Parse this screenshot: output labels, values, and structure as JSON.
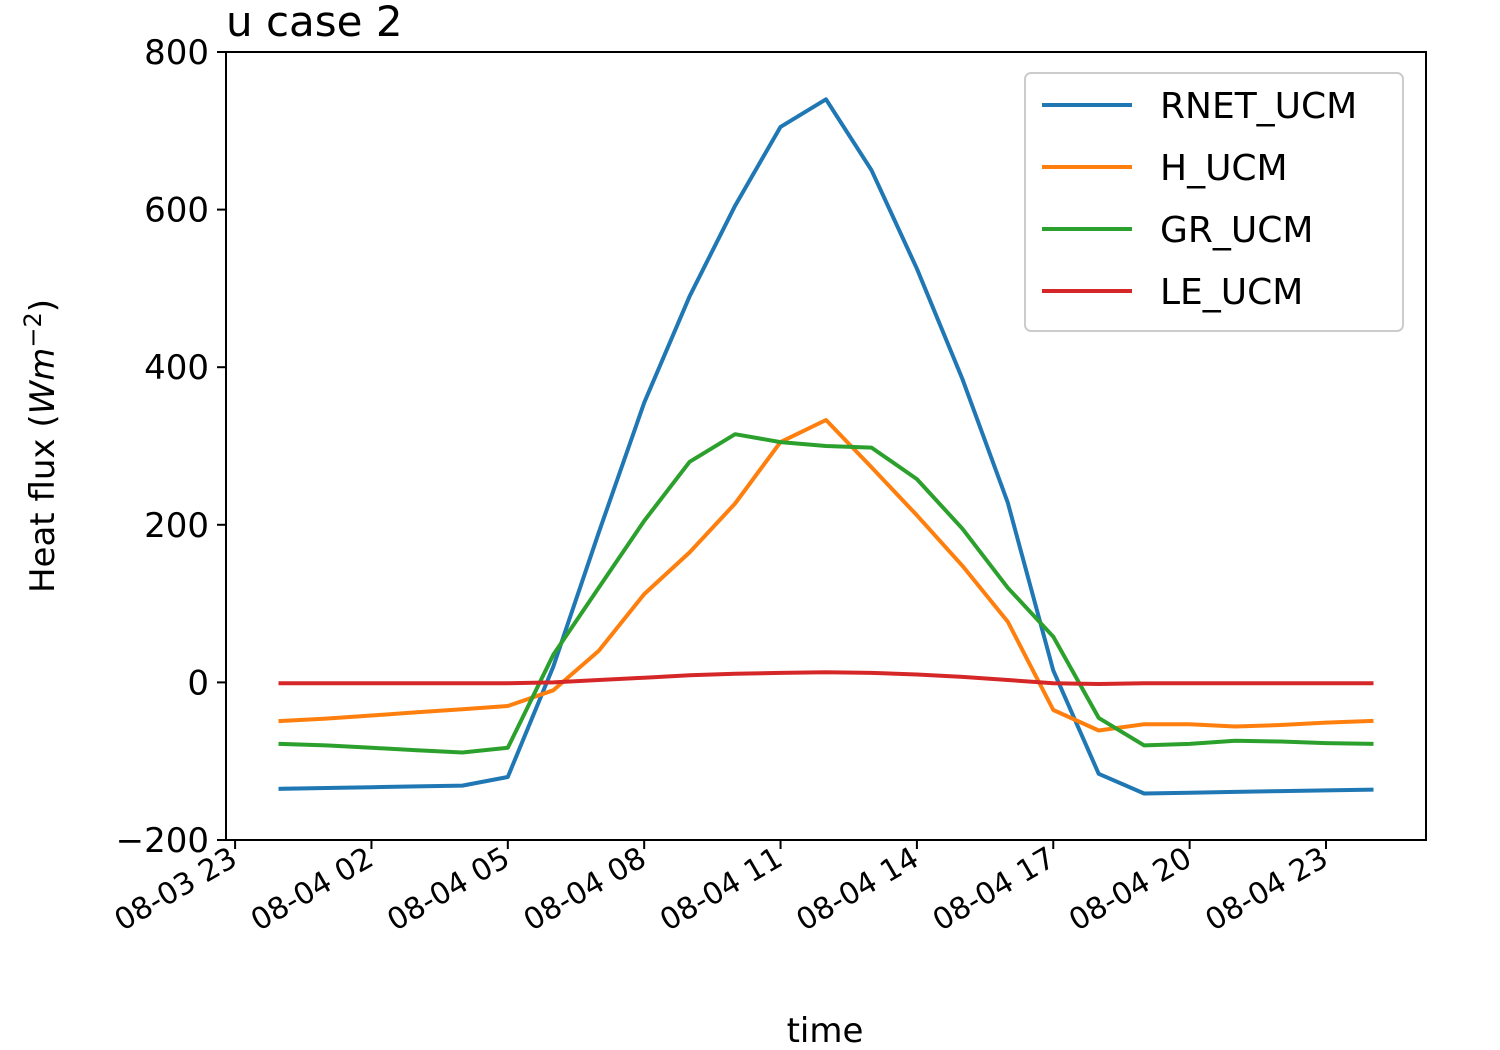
{
  "chart_data": {
    "type": "line",
    "title": "u case 2",
    "xlabel": "time",
    "ylabel_base": "Heat flux (",
    "ylabel_math": "Wm",
    "ylabel_exp": "−2",
    "ylabel_end": ")",
    "ylim": [
      -200,
      800
    ],
    "yticks": [
      -200,
      0,
      200,
      400,
      600,
      800
    ],
    "ytick_labels": [
      "−200",
      "0",
      "200",
      "400",
      "600",
      "800"
    ],
    "x_hours": [
      0,
      1,
      2,
      3,
      4,
      5,
      6,
      7,
      8,
      9,
      10,
      11,
      12,
      13,
      14,
      15,
      16,
      17,
      18,
      19,
      20,
      21,
      22,
      23,
      24
    ],
    "x_start": "08-04 00",
    "xlim_hours": [
      -1.2,
      25.2
    ],
    "xticks_hours": [
      -1,
      2,
      5,
      8,
      11,
      14,
      17,
      20,
      23
    ],
    "xtick_labels": [
      "08-03 23",
      "08-04 02",
      "08-04 05",
      "08-04 08",
      "08-04 11",
      "08-04 14",
      "08-04 17",
      "08-04 20",
      "08-04 23"
    ],
    "legend_position": "top-right",
    "grid": false,
    "series": [
      {
        "name": "RNET_UCM",
        "color": "#1f77b4",
        "values": [
          -135,
          -134,
          -133,
          -132,
          -131,
          -120,
          20,
          190,
          355,
          490,
          605,
          705,
          740,
          650,
          525,
          385,
          228,
          15,
          -116,
          -141,
          -140,
          -139,
          -138,
          -137,
          -136
        ]
      },
      {
        "name": "H_UCM",
        "color": "#ff7f0e",
        "values": [
          -49,
          -46,
          -42,
          -38,
          -34,
          -30,
          -10,
          40,
          112,
          165,
          227,
          305,
          333,
          273,
          212,
          148,
          77,
          -35,
          -61,
          -53,
          -53,
          -56,
          -54,
          -51,
          -49
        ]
      },
      {
        "name": "GR_UCM",
        "color": "#2ca02c",
        "values": [
          -78,
          -80,
          -83,
          -86,
          -89,
          -83,
          35,
          120,
          205,
          280,
          315,
          305,
          300,
          298,
          258,
          195,
          120,
          58,
          -45,
          -80,
          -78,
          -74,
          -75,
          -77,
          -78
        ]
      },
      {
        "name": "LE_UCM",
        "color": "#d62728",
        "values": [
          -1,
          -1,
          -1,
          -1,
          -1,
          -1,
          0,
          3,
          6,
          9,
          11,
          12,
          13,
          12,
          10,
          7,
          3,
          -1,
          -2,
          -1,
          -1,
          -1,
          -1,
          -1,
          -1
        ]
      }
    ]
  }
}
